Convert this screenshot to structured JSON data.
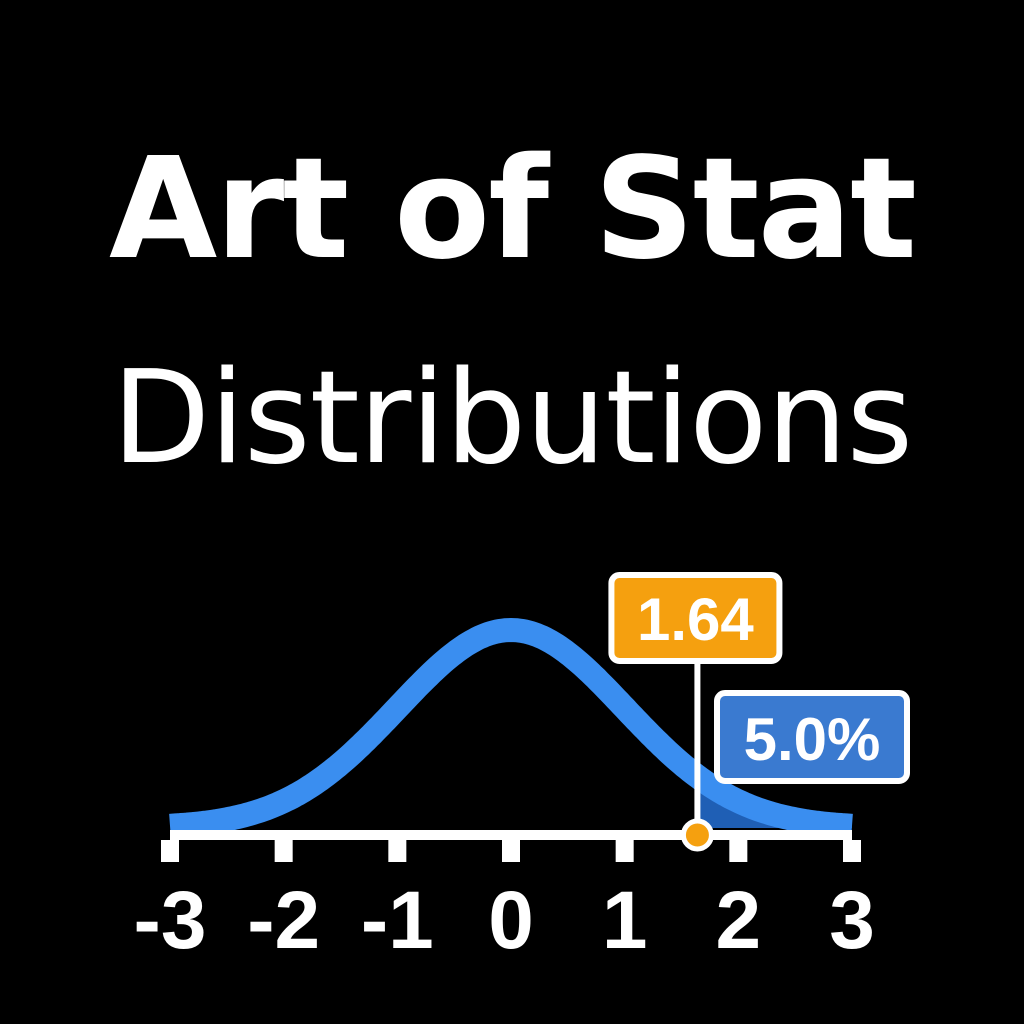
{
  "title": "Art of Stat",
  "subtitle": "Distributions",
  "colors": {
    "background": "#000000",
    "curve": "#3a8ef0",
    "tail_fill": "#1f5fb5",
    "marker": "#f5a00f",
    "percent_badge": "#3a7ad0",
    "axis": "#ffffff",
    "text": "#ffffff"
  },
  "chart_data": {
    "type": "area",
    "distribution": "normal",
    "mean": 0,
    "sd": 1,
    "x_range": [
      -3,
      3
    ],
    "tick_labels": [
      "-3",
      "-2",
      "-1",
      "0",
      "1",
      "2",
      "3"
    ],
    "tick_values": [
      -3,
      -2,
      -1,
      0,
      1,
      2,
      3
    ],
    "cutoff": 1.64,
    "cutoff_label": "1.64",
    "upper_tail_probability": 0.05,
    "tail_label": "5.0%"
  }
}
